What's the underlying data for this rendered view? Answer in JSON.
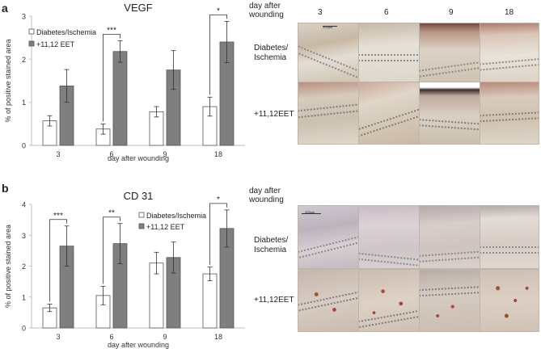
{
  "panels": [
    {
      "letter": "a",
      "day_header": "day after\nwounding",
      "row_labels": [
        "Diabetes/\nIschemia",
        "+11,12EET"
      ],
      "image_columns": [
        "3",
        "6",
        "9",
        "18"
      ],
      "scale_bar": "200µm"
    },
    {
      "letter": "b",
      "day_header": "day after\nwounding",
      "row_labels": [
        "Diabetes/\nIschemia",
        "+11,12EET"
      ],
      "image_columns": [
        "3",
        "6",
        "9",
        "18"
      ],
      "scale_bar": "200µm"
    }
  ],
  "colors": {
    "series1_fill": "#ffffff",
    "series2_fill": "#7f7f7f",
    "bar_border": "#555555",
    "axis": "#bfbfbf"
  },
  "chart_data": [
    {
      "type": "bar",
      "title": "VEGF",
      "xlabel": "day after wounding",
      "ylabel": "% of positive  stained area",
      "categories": [
        "3",
        "6",
        "9",
        "18"
      ],
      "ylim": [
        0,
        3
      ],
      "yticks": [
        "0",
        "1",
        "2",
        "3"
      ],
      "legend_position": "top-left",
      "series": [
        {
          "name": "Diabetes/Ischemia",
          "values": [
            0.57,
            0.38,
            0.78,
            0.9
          ],
          "errors": [
            0.12,
            0.12,
            0.12,
            0.22
          ]
        },
        {
          "name": "+11,12 EET",
          "values": [
            1.38,
            2.18,
            1.75,
            2.4
          ],
          "errors": [
            0.38,
            0.25,
            0.45,
            0.48
          ]
        }
      ],
      "significance": [
        {
          "category": "6",
          "label": "***"
        },
        {
          "category": "18",
          "label": "*"
        }
      ]
    },
    {
      "type": "bar",
      "title": "CD 31",
      "xlabel": "day after wounding",
      "ylabel": "% of positive  stained area",
      "categories": [
        "3",
        "6",
        "9",
        "18"
      ],
      "ylim": [
        0,
        4
      ],
      "yticks": [
        "0",
        "1",
        "2",
        "3",
        "4"
      ],
      "legend_position": "top-center",
      "series": [
        {
          "name": "Diabetes/Ischemia",
          "values": [
            0.65,
            1.05,
            2.1,
            1.75
          ],
          "errors": [
            0.12,
            0.3,
            0.35,
            0.22
          ]
        },
        {
          "name": "+11,12 EET",
          "values": [
            2.65,
            2.73,
            2.28,
            3.22
          ],
          "errors": [
            0.65,
            0.65,
            0.5,
            0.6
          ]
        }
      ],
      "significance": [
        {
          "category": "3",
          "label": "***"
        },
        {
          "category": "6",
          "label": "**"
        },
        {
          "category": "18",
          "label": "*"
        }
      ]
    }
  ]
}
